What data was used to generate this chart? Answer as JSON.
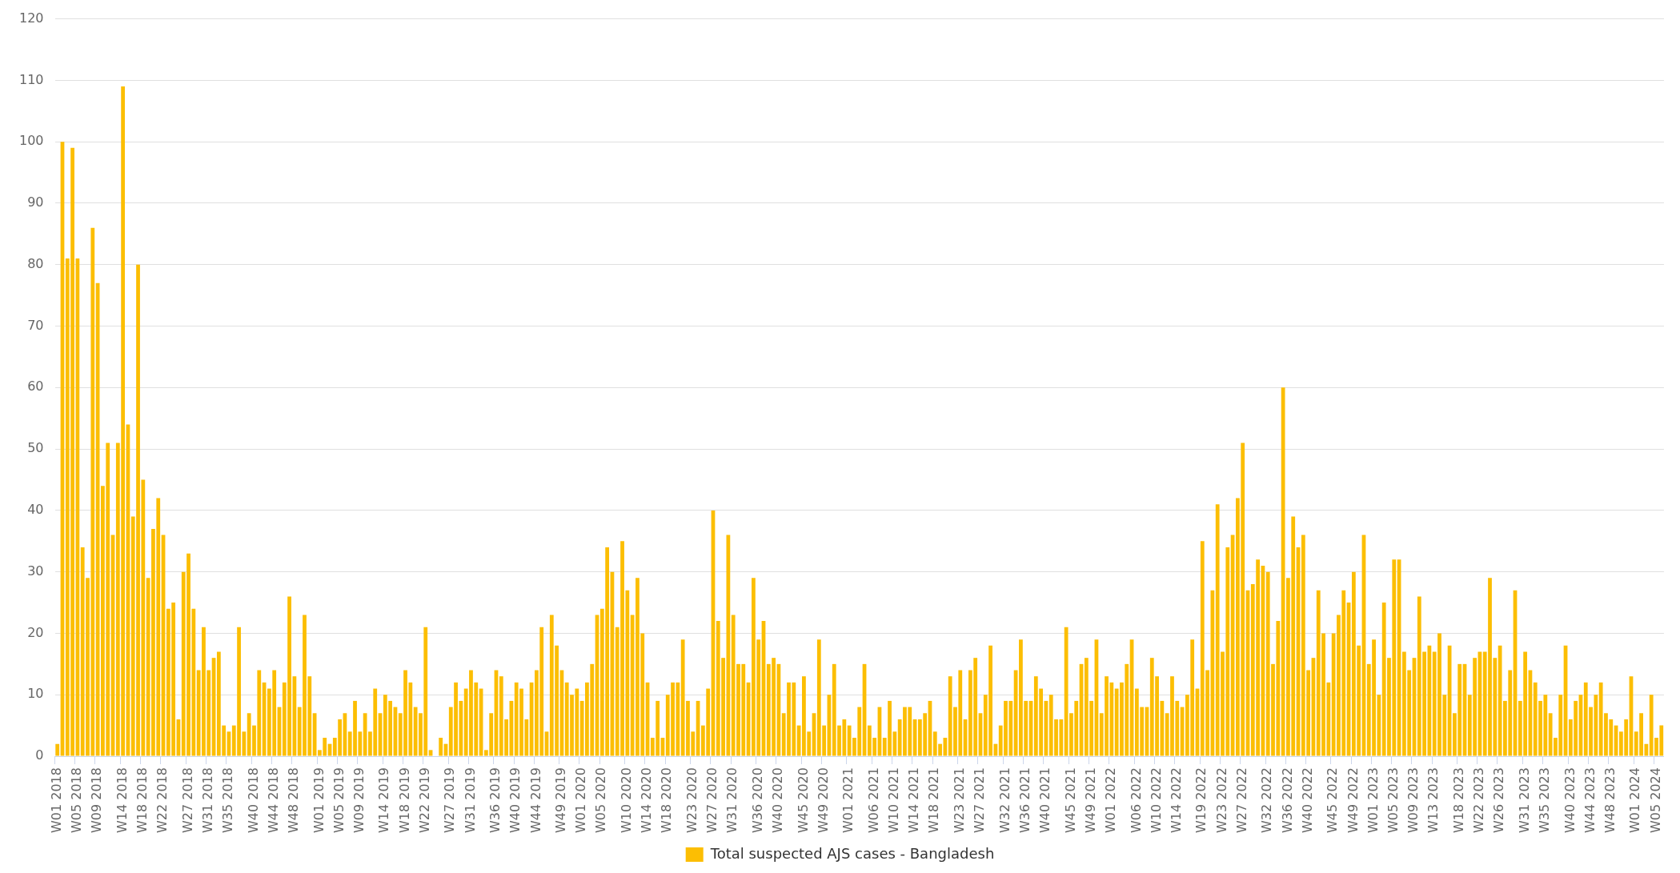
{
  "chart_data": {
    "type": "bar",
    "categories": [
      "W01 2018",
      null,
      null,
      null,
      "W05 2018",
      null,
      null,
      null,
      "W09 2018",
      null,
      null,
      null,
      null,
      "W14 2018",
      null,
      null,
      null,
      "W18 2018",
      null,
      null,
      null,
      "W22 2018",
      null,
      null,
      null,
      null,
      "W27 2018",
      null,
      null,
      null,
      "W31 2018",
      null,
      null,
      null,
      "W35 2018",
      null,
      null,
      null,
      null,
      "W40 2018",
      null,
      null,
      null,
      "W44 2018",
      null,
      null,
      null,
      "W48 2018",
      null,
      null,
      null,
      null,
      "W01 2019",
      null,
      null,
      null,
      "W05 2019",
      null,
      null,
      null,
      "W09 2019",
      null,
      null,
      null,
      null,
      "W14 2019",
      null,
      null,
      null,
      "W18 2019",
      null,
      null,
      null,
      "W22 2019",
      null,
      null,
      null,
      null,
      "W27 2019",
      null,
      null,
      null,
      "W31 2019",
      null,
      null,
      null,
      null,
      "W36 2019",
      null,
      null,
      null,
      "W40 2019",
      null,
      null,
      null,
      "W44 2019",
      null,
      null,
      null,
      null,
      "W49 2019",
      null,
      null,
      null,
      "W01 2020",
      null,
      null,
      null,
      "W05 2020",
      null,
      null,
      null,
      null,
      "W10 2020",
      null,
      null,
      null,
      "W14 2020",
      null,
      null,
      null,
      "W18 2020",
      null,
      null,
      null,
      null,
      "W23 2020",
      null,
      null,
      null,
      "W27 2020",
      null,
      null,
      null,
      "W31 2020",
      null,
      null,
      null,
      null,
      "W36 2020",
      null,
      null,
      null,
      "W40 2020",
      null,
      null,
      null,
      null,
      "W45 2020",
      null,
      null,
      null,
      "W49 2020",
      null,
      null,
      null,
      null,
      "W01 2021",
      null,
      null,
      null,
      null,
      "W06 2021",
      null,
      null,
      null,
      "W10 2021",
      null,
      null,
      null,
      "W14 2021",
      null,
      null,
      null,
      "W18 2021",
      null,
      null,
      null,
      null,
      "W23 2021",
      null,
      null,
      null,
      "W27 2021",
      null,
      null,
      null,
      null,
      "W32 2021",
      null,
      null,
      null,
      "W36 2021",
      null,
      null,
      null,
      "W40 2021",
      null,
      null,
      null,
      null,
      "W45 2021",
      null,
      null,
      null,
      "W49 2021",
      null,
      null,
      null,
      "W01 2022",
      null,
      null,
      null,
      null,
      "W06 2022",
      null,
      null,
      null,
      "W10 2022",
      null,
      null,
      null,
      "W14 2022",
      null,
      null,
      null,
      null,
      "W19 2022",
      null,
      null,
      null,
      "W23 2022",
      null,
      null,
      null,
      "W27 2022",
      null,
      null,
      null,
      null,
      "W32 2022",
      null,
      null,
      null,
      "W36 2022",
      null,
      null,
      null,
      "W40 2022",
      null,
      null,
      null,
      null,
      "W45 2022",
      null,
      null,
      null,
      "W49 2022",
      null,
      null,
      null,
      "W01 2023",
      null,
      null,
      null,
      "W05 2023",
      null,
      null,
      null,
      "W09 2023",
      null,
      null,
      null,
      "W13 2023",
      null,
      null,
      null,
      null,
      "W18 2023",
      null,
      null,
      null,
      "W22 2023",
      null,
      null,
      null,
      "W26 2023",
      null,
      null,
      null,
      null,
      "W31 2023",
      null,
      null,
      null,
      "W35 2023",
      null,
      null,
      null,
      null,
      "W40 2023",
      null,
      null,
      null,
      "W44 2023",
      null,
      null,
      null,
      "W48 2023",
      null,
      null,
      null,
      null,
      "W01 2024",
      null,
      null,
      null,
      "W05 2024",
      null
    ],
    "series": [
      {
        "name": "Total suspected AJS cases - Bangladesh",
        "color": "#fcbe03",
        "values": [
          2,
          100,
          81,
          99,
          81,
          34,
          29,
          86,
          77,
          44,
          51,
          36,
          51,
          109,
          54,
          39,
          80,
          45,
          29,
          37,
          42,
          36,
          24,
          25,
          6,
          30,
          33,
          24,
          14,
          21,
          14,
          16,
          17,
          5,
          4,
          5,
          21,
          4,
          7,
          5,
          14,
          12,
          11,
          14,
          8,
          12,
          26,
          13,
          8,
          23,
          13,
          7,
          1,
          3,
          2,
          3,
          6,
          7,
          4,
          9,
          4,
          7,
          4,
          11,
          7,
          10,
          9,
          8,
          7,
          14,
          12,
          8,
          7,
          21,
          1,
          0,
          3,
          2,
          8,
          12,
          9,
          11,
          14,
          12,
          11,
          1,
          7,
          14,
          13,
          6,
          9,
          12,
          11,
          6,
          12,
          14,
          21,
          4,
          23,
          18,
          14,
          12,
          10,
          11,
          9,
          12,
          15,
          23,
          24,
          34,
          30,
          21,
          35,
          27,
          23,
          29,
          20,
          12,
          3,
          9,
          3,
          10,
          12,
          12,
          19,
          9,
          4,
          9,
          5,
          11,
          40,
          22,
          16,
          36,
          23,
          15,
          15,
          12,
          29,
          19,
          22,
          15,
          16,
          15,
          7,
          12,
          12,
          5,
          13,
          4,
          7,
          19,
          5,
          10,
          15,
          5,
          6,
          5,
          3,
          8,
          15,
          5,
          3,
          8,
          3,
          9,
          4,
          6,
          8,
          8,
          6,
          6,
          7,
          9,
          4,
          2,
          3,
          13,
          8,
          14,
          6,
          14,
          16,
          7,
          10,
          18,
          2,
          5,
          9,
          9,
          14,
          19,
          9,
          9,
          13,
          11,
          9,
          10,
          6,
          6,
          21,
          7,
          9,
          15,
          16,
          9,
          19,
          7,
          13,
          12,
          11,
          12,
          15,
          19,
          11,
          8,
          8,
          16,
          13,
          9,
          7,
          13,
          9,
          8,
          10,
          19,
          11,
          35,
          14,
          27,
          41,
          17,
          34,
          36,
          42,
          51,
          27,
          28,
          32,
          31,
          30,
          15,
          22,
          60,
          29,
          39,
          34,
          36,
          14,
          16,
          27,
          20,
          12,
          20,
          23,
          27,
          25,
          30,
          18,
          36,
          15,
          19,
          10,
          25,
          16,
          32,
          32,
          17,
          14,
          16,
          26,
          17,
          18,
          17,
          20,
          10,
          18,
          7,
          15,
          15,
          10,
          16,
          17,
          17,
          29,
          16,
          18,
          9,
          14,
          27,
          9,
          17,
          14,
          12,
          9,
          10,
          7,
          3,
          10,
          18,
          6,
          9,
          10,
          12,
          8,
          10,
          12,
          7,
          6,
          5,
          4,
          6,
          13,
          4,
          7,
          2,
          10,
          3,
          5
        ]
      }
    ],
    "ylim": [
      0,
      120
    ],
    "yticks": [
      0,
      10,
      20,
      30,
      40,
      50,
      60,
      70,
      80,
      90,
      100,
      110,
      120
    ],
    "grid": "y",
    "legend": "bottom"
  }
}
